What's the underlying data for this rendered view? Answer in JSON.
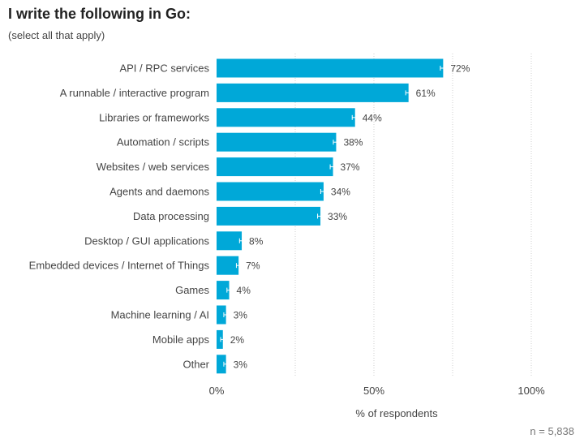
{
  "header": {
    "title": "I write the following in Go:",
    "subtitle": "(select all that apply)"
  },
  "footer": {
    "n_label": "n =  5,838"
  },
  "colors": {
    "bar": "#00a8d8",
    "grid": "#cfcfcf",
    "text": "#444444",
    "error_bar": "#ffffff"
  },
  "chart_data": {
    "type": "bar",
    "orientation": "horizontal",
    "categories": [
      "API / RPC services",
      "A runnable / interactive program",
      "Libraries or frameworks",
      "Automation / scripts",
      "Websites / web services",
      "Agents and daemons",
      "Data processing",
      "Desktop / GUI applications",
      "Embedded devices / Internet of Things",
      "Games",
      "Machine learning / AI",
      "Mobile apps",
      "Other"
    ],
    "values": [
      72,
      61,
      44,
      38,
      37,
      34,
      33,
      8,
      7,
      4,
      3,
      2,
      3
    ],
    "value_labels": [
      "72%",
      "61%",
      "44%",
      "38%",
      "37%",
      "34%",
      "33%",
      "8%",
      "7%",
      "4%",
      "3%",
      "2%",
      "3%"
    ],
    "xlabel": "% of respondents",
    "xlim": [
      0,
      100
    ],
    "xticks": [
      0,
      50,
      100
    ],
    "xtick_labels": [
      "0%",
      "50%",
      "100%"
    ],
    "grid": true,
    "error_bars": true
  }
}
